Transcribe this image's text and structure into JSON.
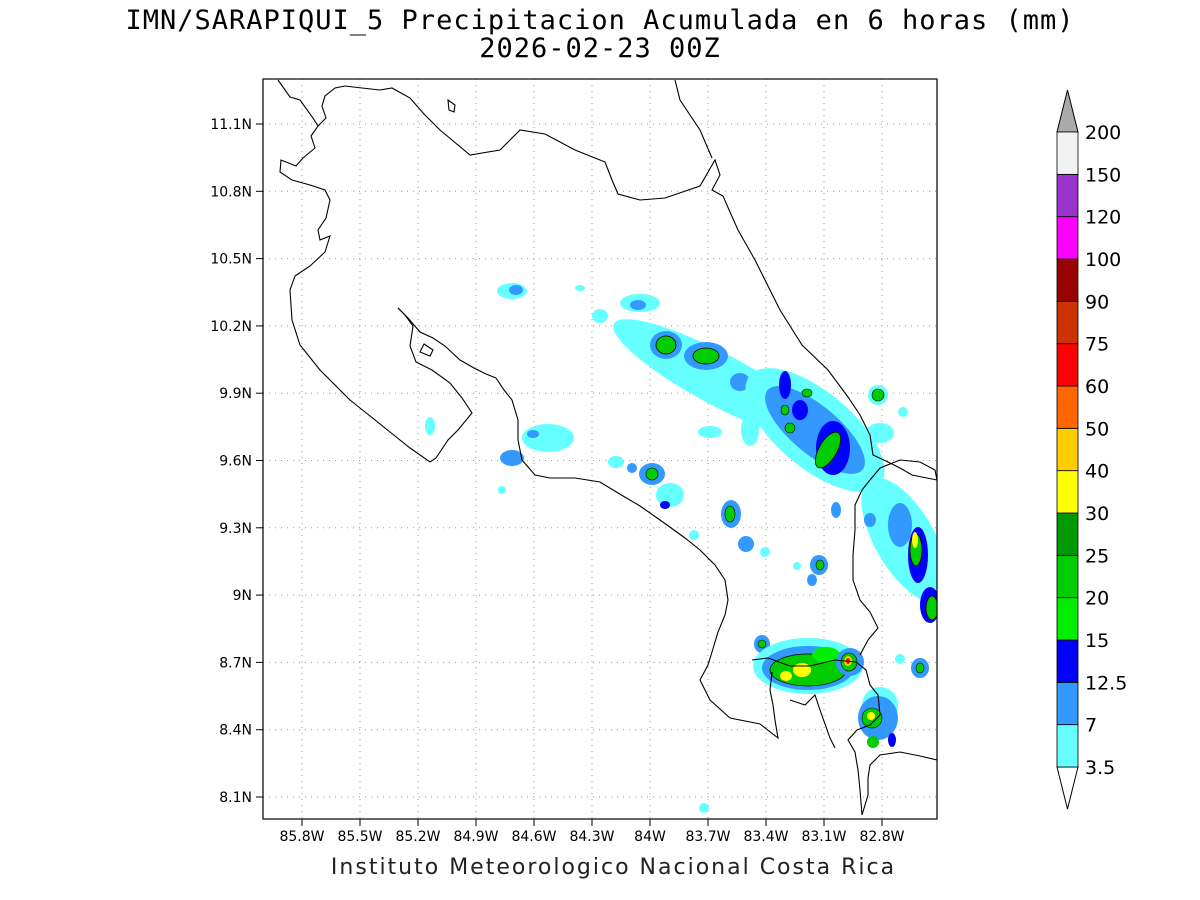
{
  "title": {
    "line1": "IMN/SARAPIQUI_5 Precipitacion Acumulada en 6 horas (mm)",
    "line2": "2026-02-23 00Z"
  },
  "footer": "Instituto Meteorologico Nacional Costa Rica",
  "map": {
    "lon_labels": [
      "85.8W",
      "85.5W",
      "85.2W",
      "84.9W",
      "84.6W",
      "84.3W",
      "84W",
      "83.7W",
      "83.4W",
      "83.1W",
      "82.8W"
    ],
    "lat_labels": [
      "11.1N",
      "10.8N",
      "10.5N",
      "10.2N",
      "9.9N",
      "9.6N",
      "9.3N",
      "9N",
      "8.7N",
      "8.4N",
      "8.1N"
    ],
    "grid": "dotted"
  },
  "colorbar": {
    "levels": [
      "3.5",
      "7",
      "12.5",
      "15",
      "20",
      "25",
      "30",
      "40",
      "50",
      "60",
      "75",
      "90",
      "100",
      "120",
      "150",
      "200"
    ],
    "colors": [
      "#66ffff",
      "#3399ff",
      "#0000ff",
      "#00ee00",
      "#00cc00",
      "#009900",
      "#ffff00",
      "#ffcc00",
      "#ff6600",
      "#ff0000",
      "#cc3300",
      "#990000",
      "#ff00ff",
      "#9933cc",
      "#f2f2f2"
    ],
    "arrow_top": "#aaaaaa",
    "arrow_bottom": "#ffffff"
  }
}
